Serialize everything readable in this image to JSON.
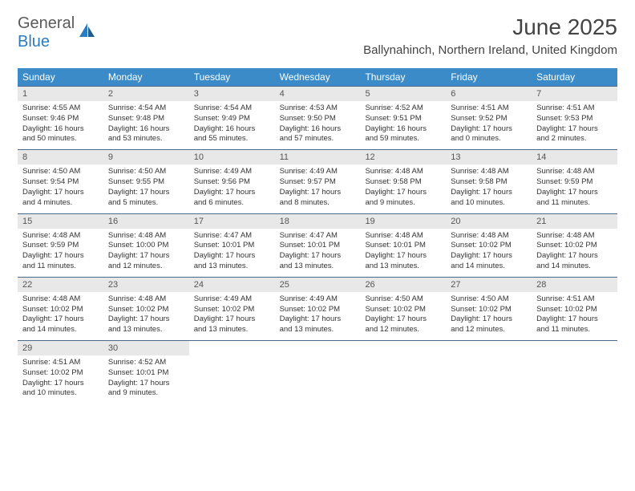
{
  "logo": {
    "word1": "General",
    "word2": "Blue"
  },
  "title": "June 2025",
  "location": "Ballynahinch, Northern Ireland, United Kingdom",
  "colors": {
    "header_bg": "#3b8bc8",
    "header_text": "#ffffff",
    "daynum_bg": "#e8e8e8",
    "daynum_text": "#555555",
    "body_text": "#333333",
    "rule": "#4a6a8a",
    "logo_gray": "#5a5a5a",
    "logo_blue": "#2b7bbf",
    "page_bg": "#ffffff"
  },
  "fonts": {
    "body_pt": 9.5,
    "title_pt": 28,
    "location_pt": 15,
    "dow_pt": 12
  },
  "dow": [
    "Sunday",
    "Monday",
    "Tuesday",
    "Wednesday",
    "Thursday",
    "Friday",
    "Saturday"
  ],
  "weeks": [
    [
      {
        "n": "1",
        "sr": "Sunrise: 4:55 AM",
        "ss": "Sunset: 9:46 PM",
        "d1": "Daylight: 16 hours",
        "d2": "and 50 minutes."
      },
      {
        "n": "2",
        "sr": "Sunrise: 4:54 AM",
        "ss": "Sunset: 9:48 PM",
        "d1": "Daylight: 16 hours",
        "d2": "and 53 minutes."
      },
      {
        "n": "3",
        "sr": "Sunrise: 4:54 AM",
        "ss": "Sunset: 9:49 PM",
        "d1": "Daylight: 16 hours",
        "d2": "and 55 minutes."
      },
      {
        "n": "4",
        "sr": "Sunrise: 4:53 AM",
        "ss": "Sunset: 9:50 PM",
        "d1": "Daylight: 16 hours",
        "d2": "and 57 minutes."
      },
      {
        "n": "5",
        "sr": "Sunrise: 4:52 AM",
        "ss": "Sunset: 9:51 PM",
        "d1": "Daylight: 16 hours",
        "d2": "and 59 minutes."
      },
      {
        "n": "6",
        "sr": "Sunrise: 4:51 AM",
        "ss": "Sunset: 9:52 PM",
        "d1": "Daylight: 17 hours",
        "d2": "and 0 minutes."
      },
      {
        "n": "7",
        "sr": "Sunrise: 4:51 AM",
        "ss": "Sunset: 9:53 PM",
        "d1": "Daylight: 17 hours",
        "d2": "and 2 minutes."
      }
    ],
    [
      {
        "n": "8",
        "sr": "Sunrise: 4:50 AM",
        "ss": "Sunset: 9:54 PM",
        "d1": "Daylight: 17 hours",
        "d2": "and 4 minutes."
      },
      {
        "n": "9",
        "sr": "Sunrise: 4:50 AM",
        "ss": "Sunset: 9:55 PM",
        "d1": "Daylight: 17 hours",
        "d2": "and 5 minutes."
      },
      {
        "n": "10",
        "sr": "Sunrise: 4:49 AM",
        "ss": "Sunset: 9:56 PM",
        "d1": "Daylight: 17 hours",
        "d2": "and 6 minutes."
      },
      {
        "n": "11",
        "sr": "Sunrise: 4:49 AM",
        "ss": "Sunset: 9:57 PM",
        "d1": "Daylight: 17 hours",
        "d2": "and 8 minutes."
      },
      {
        "n": "12",
        "sr": "Sunrise: 4:48 AM",
        "ss": "Sunset: 9:58 PM",
        "d1": "Daylight: 17 hours",
        "d2": "and 9 minutes."
      },
      {
        "n": "13",
        "sr": "Sunrise: 4:48 AM",
        "ss": "Sunset: 9:58 PM",
        "d1": "Daylight: 17 hours",
        "d2": "and 10 minutes."
      },
      {
        "n": "14",
        "sr": "Sunrise: 4:48 AM",
        "ss": "Sunset: 9:59 PM",
        "d1": "Daylight: 17 hours",
        "d2": "and 11 minutes."
      }
    ],
    [
      {
        "n": "15",
        "sr": "Sunrise: 4:48 AM",
        "ss": "Sunset: 9:59 PM",
        "d1": "Daylight: 17 hours",
        "d2": "and 11 minutes."
      },
      {
        "n": "16",
        "sr": "Sunrise: 4:48 AM",
        "ss": "Sunset: 10:00 PM",
        "d1": "Daylight: 17 hours",
        "d2": "and 12 minutes."
      },
      {
        "n": "17",
        "sr": "Sunrise: 4:47 AM",
        "ss": "Sunset: 10:01 PM",
        "d1": "Daylight: 17 hours",
        "d2": "and 13 minutes."
      },
      {
        "n": "18",
        "sr": "Sunrise: 4:47 AM",
        "ss": "Sunset: 10:01 PM",
        "d1": "Daylight: 17 hours",
        "d2": "and 13 minutes."
      },
      {
        "n": "19",
        "sr": "Sunrise: 4:48 AM",
        "ss": "Sunset: 10:01 PM",
        "d1": "Daylight: 17 hours",
        "d2": "and 13 minutes."
      },
      {
        "n": "20",
        "sr": "Sunrise: 4:48 AM",
        "ss": "Sunset: 10:02 PM",
        "d1": "Daylight: 17 hours",
        "d2": "and 14 minutes."
      },
      {
        "n": "21",
        "sr": "Sunrise: 4:48 AM",
        "ss": "Sunset: 10:02 PM",
        "d1": "Daylight: 17 hours",
        "d2": "and 14 minutes."
      }
    ],
    [
      {
        "n": "22",
        "sr": "Sunrise: 4:48 AM",
        "ss": "Sunset: 10:02 PM",
        "d1": "Daylight: 17 hours",
        "d2": "and 14 minutes."
      },
      {
        "n": "23",
        "sr": "Sunrise: 4:48 AM",
        "ss": "Sunset: 10:02 PM",
        "d1": "Daylight: 17 hours",
        "d2": "and 13 minutes."
      },
      {
        "n": "24",
        "sr": "Sunrise: 4:49 AM",
        "ss": "Sunset: 10:02 PM",
        "d1": "Daylight: 17 hours",
        "d2": "and 13 minutes."
      },
      {
        "n": "25",
        "sr": "Sunrise: 4:49 AM",
        "ss": "Sunset: 10:02 PM",
        "d1": "Daylight: 17 hours",
        "d2": "and 13 minutes."
      },
      {
        "n": "26",
        "sr": "Sunrise: 4:50 AM",
        "ss": "Sunset: 10:02 PM",
        "d1": "Daylight: 17 hours",
        "d2": "and 12 minutes."
      },
      {
        "n": "27",
        "sr": "Sunrise: 4:50 AM",
        "ss": "Sunset: 10:02 PM",
        "d1": "Daylight: 17 hours",
        "d2": "and 12 minutes."
      },
      {
        "n": "28",
        "sr": "Sunrise: 4:51 AM",
        "ss": "Sunset: 10:02 PM",
        "d1": "Daylight: 17 hours",
        "d2": "and 11 minutes."
      }
    ],
    [
      {
        "n": "29",
        "sr": "Sunrise: 4:51 AM",
        "ss": "Sunset: 10:02 PM",
        "d1": "Daylight: 17 hours",
        "d2": "and 10 minutes."
      },
      {
        "n": "30",
        "sr": "Sunrise: 4:52 AM",
        "ss": "Sunset: 10:01 PM",
        "d1": "Daylight: 17 hours",
        "d2": "and 9 minutes."
      },
      null,
      null,
      null,
      null,
      null
    ]
  ]
}
